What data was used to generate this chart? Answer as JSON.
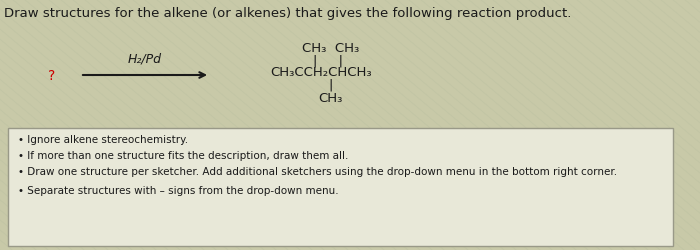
{
  "title": "Draw structures for the alkene (or alkenes) that gives the following reaction product.",
  "title_fontsize": 9.5,
  "background_color": "#c8c9a8",
  "box_background": "#e8e8d8",
  "reaction_question_mark": "?",
  "reaction_reagent": "H₂/Pd",
  "text_color": "#1a1a1a",
  "arrow_color": "#1a1a1a",
  "bullet_points": [
    "Ignore alkene stereochemistry.",
    "If more than one structure fits the description, draw them all.",
    "Draw one structure per sketcher. Add additional sketchers using the drop-down menu in the bottom right corner.",
    "Separate structures with – signs from the drop-down menu."
  ],
  "bullet_fontsize": 7.5
}
